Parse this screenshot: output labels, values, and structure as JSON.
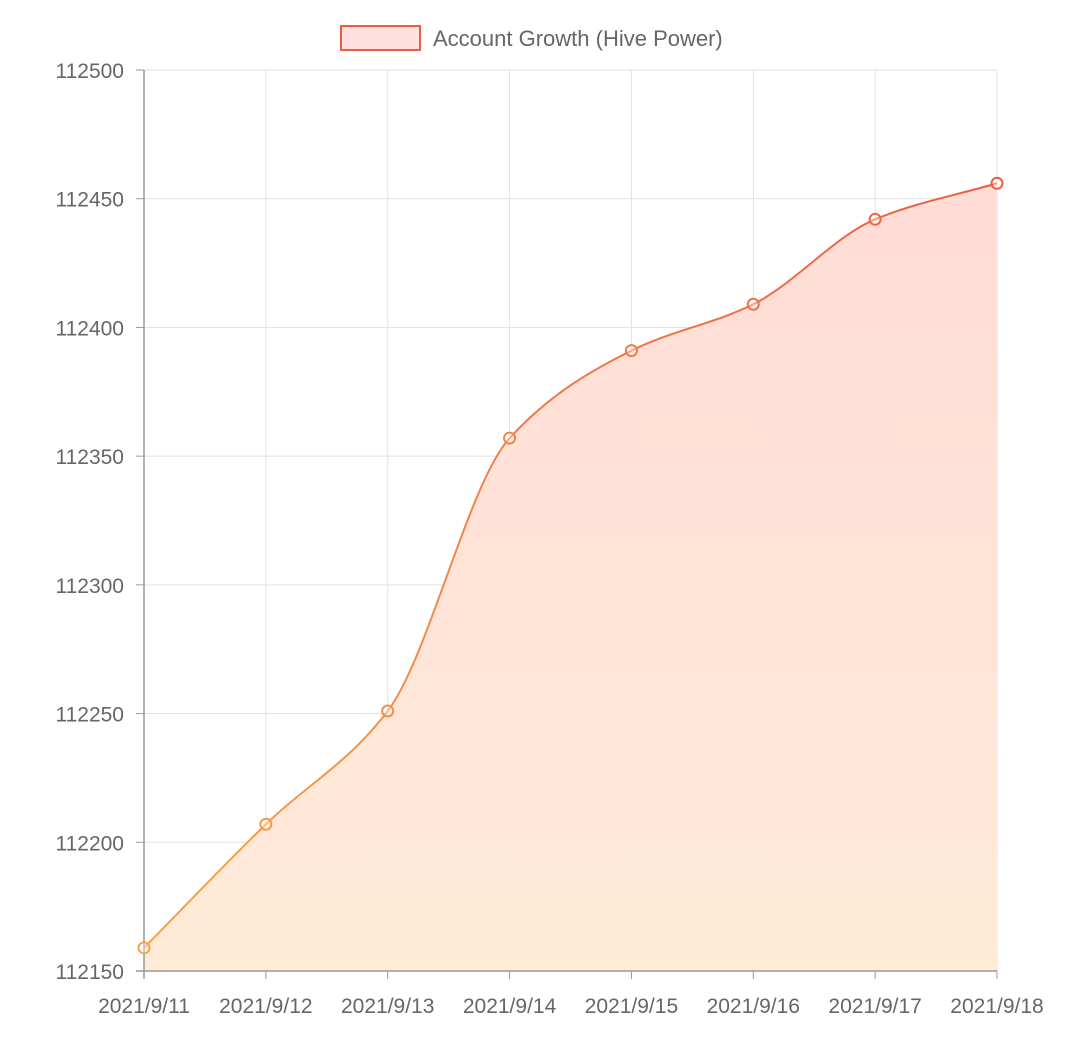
{
  "chart_data": {
    "type": "area",
    "title": "",
    "xlabel": "",
    "ylabel": "",
    "categories": [
      "2021/9/11",
      "2021/9/12",
      "2021/9/13",
      "2021/9/14",
      "2021/9/15",
      "2021/9/16",
      "2021/9/17",
      "2021/9/18"
    ],
    "series": [
      {
        "name": "Account Growth (Hive Power)",
        "values": [
          112159,
          112207,
          112251,
          112357,
          112391,
          112409,
          112442,
          112456
        ]
      }
    ],
    "ylim": [
      112150,
      112500
    ],
    "yticks": [
      112150,
      112200,
      112250,
      112300,
      112350,
      112400,
      112450,
      112500
    ],
    "grid": true,
    "legend": "top-center",
    "colors": {
      "line_start": "#f5a54a",
      "line_end": "#ec5d46",
      "fill_start": "#ffebd8",
      "fill_end": "#ffdcd6",
      "legend_fill": "#ffe0e0",
      "legend_stroke": "#ec5d46",
      "grid": "#e1e1e1",
      "axis": "#999999",
      "text": "#666666"
    }
  }
}
